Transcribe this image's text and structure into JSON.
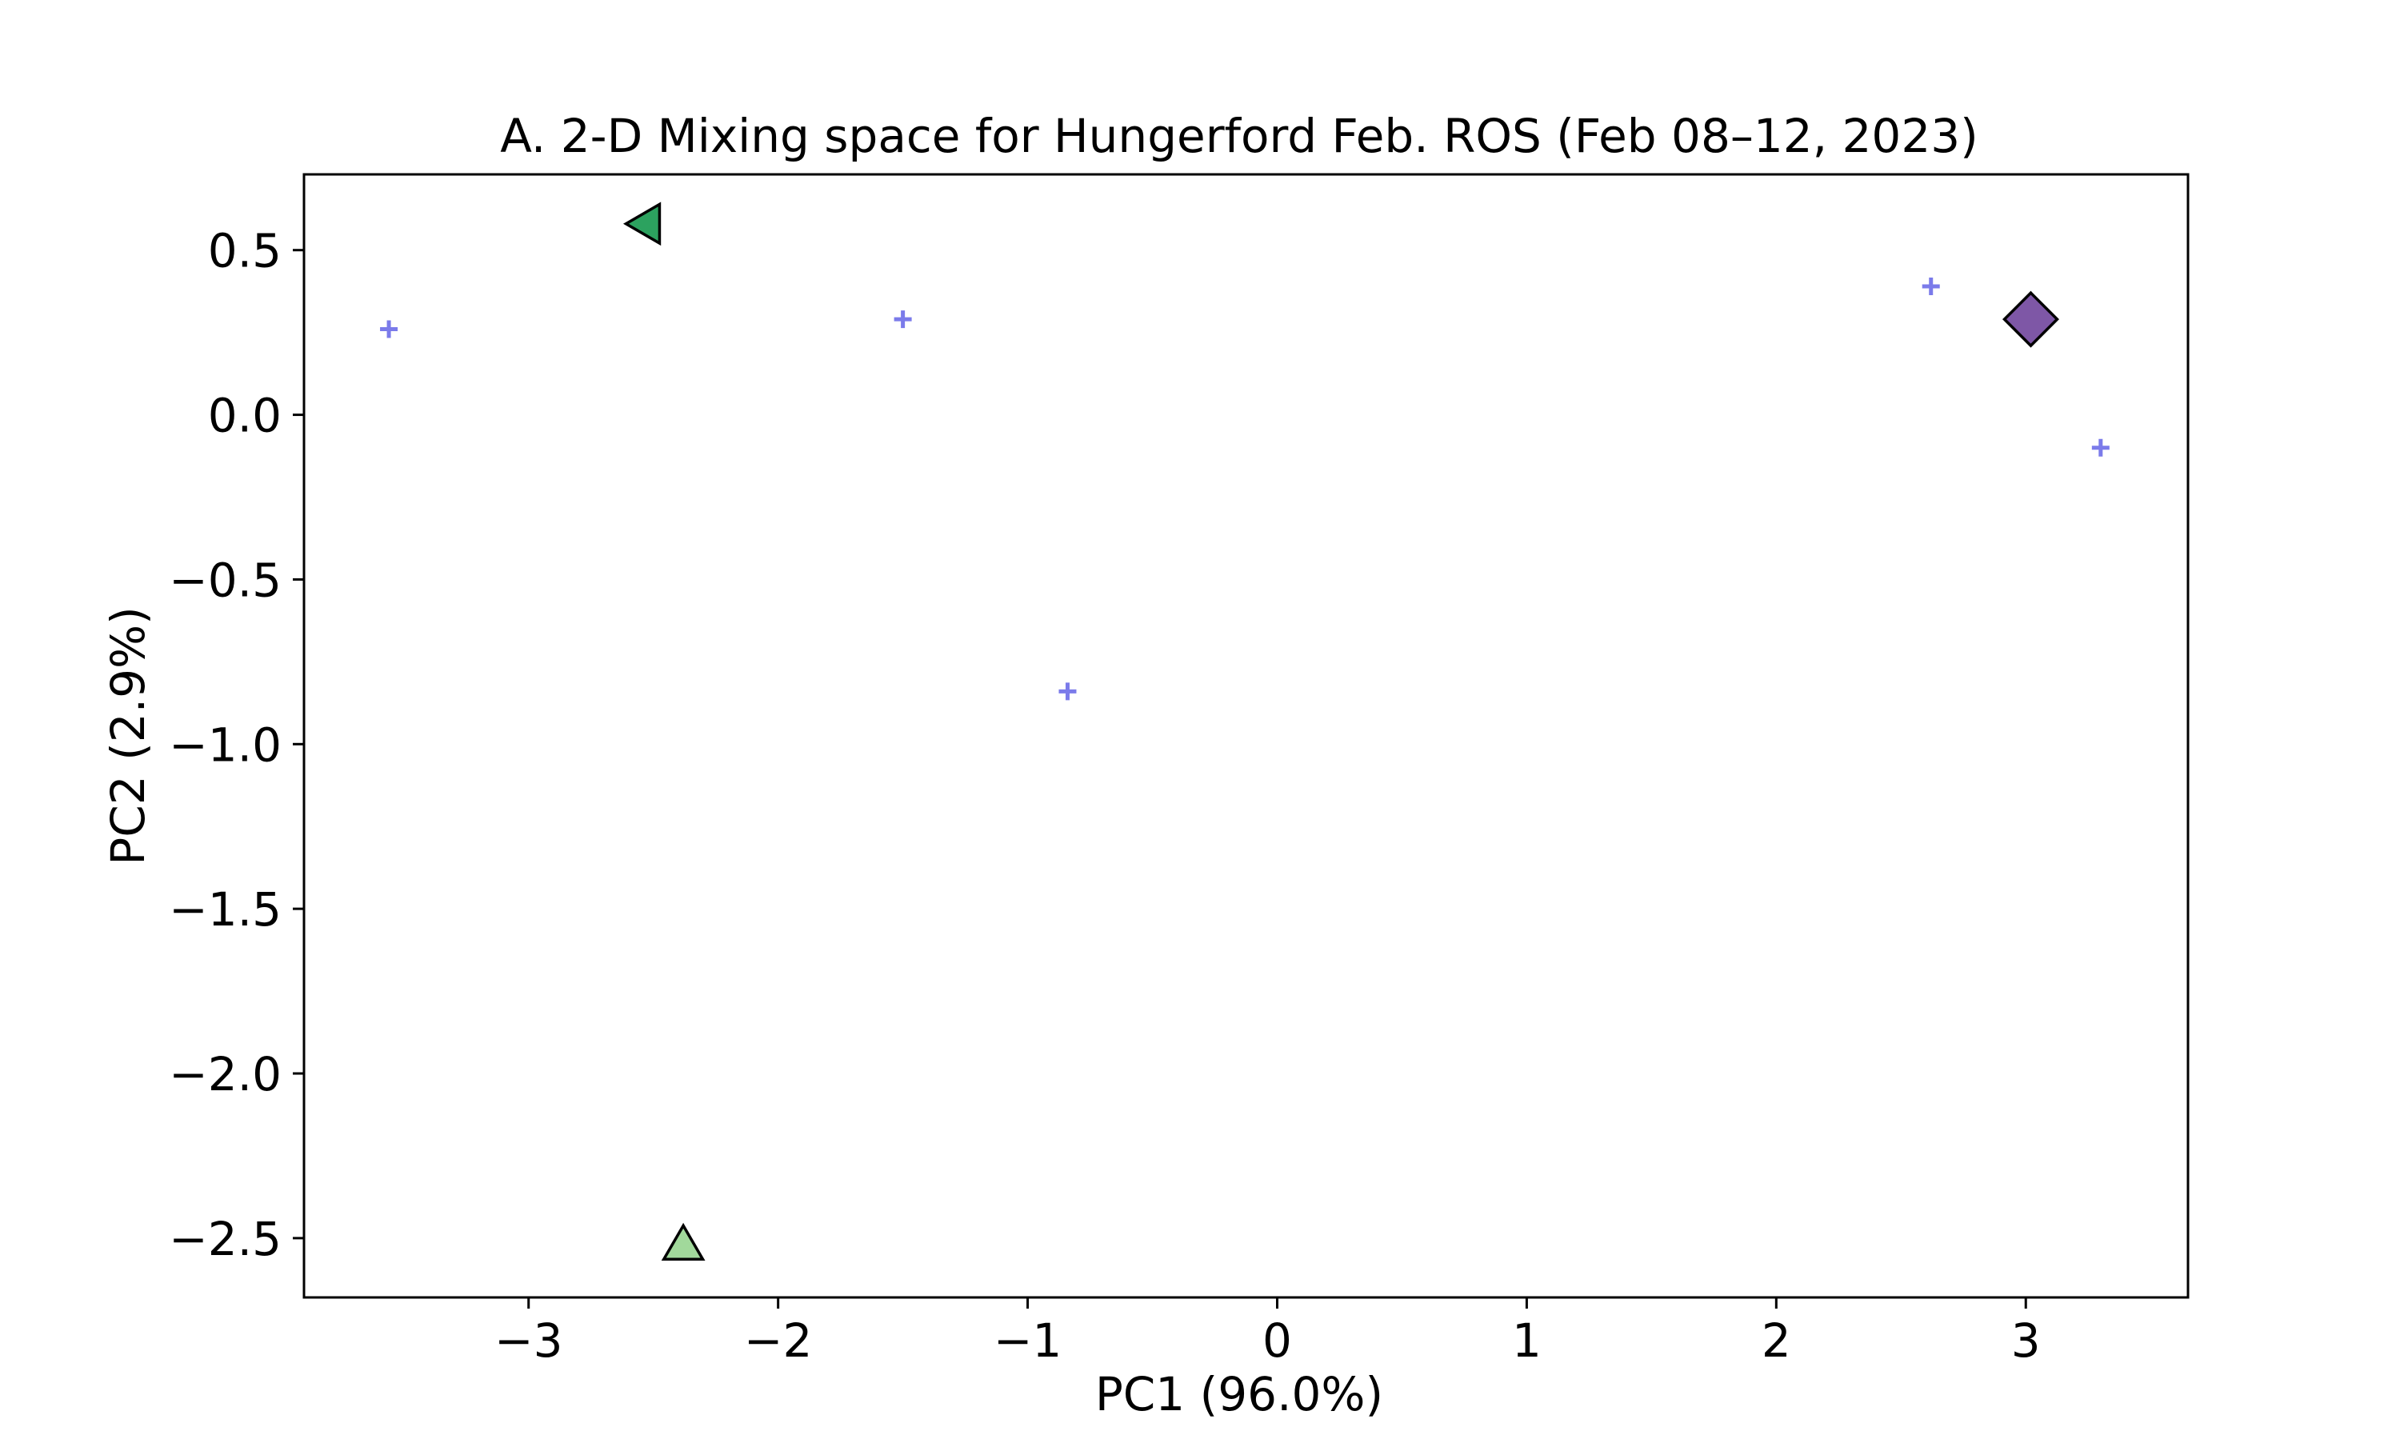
{
  "chart_data": {
    "type": "scatter",
    "title": "A. 2-D Mixing space for  Hungerford Feb. ROS (Feb 08–12, 2023)",
    "xlabel": "PC1 (96.0%)",
    "ylabel": "PC2 (2.9%)",
    "xlim": [
      -3.9,
      3.65
    ],
    "ylim": [
      -2.68,
      0.73
    ],
    "xticks": [
      -3,
      -2,
      -1,
      0,
      1,
      2,
      3
    ],
    "xtick_labels": [
      "−3",
      "−2",
      "−1",
      "0",
      "1",
      "2",
      "3"
    ],
    "yticks": [
      0.5,
      0.0,
      -0.5,
      -1.0,
      -1.5,
      -2.0,
      -2.5
    ],
    "ytick_labels": [
      "0.5",
      "0.0",
      "−0.5",
      "−1.0",
      "−1.5",
      "−2.0",
      "−2.5"
    ],
    "grid": false,
    "legend": false,
    "series": [
      {
        "marker": "plus",
        "color": "#7b7bea",
        "x": [
          -3.56,
          -1.5,
          -0.84,
          2.62,
          3.3
        ],
        "y": [
          0.26,
          0.29,
          -0.84,
          0.39,
          -0.1
        ]
      },
      {
        "marker": "triangle-left",
        "color": "#2ca25f",
        "x": [
          -2.52
        ],
        "y": [
          0.58
        ]
      },
      {
        "marker": "diamond",
        "color": "#7e57a6",
        "x": [
          3.02
        ],
        "y": [
          0.29
        ]
      },
      {
        "marker": "triangle-up",
        "color": "#a1d99b",
        "x": [
          -2.38
        ],
        "y": [
          -2.53
        ]
      }
    ]
  }
}
